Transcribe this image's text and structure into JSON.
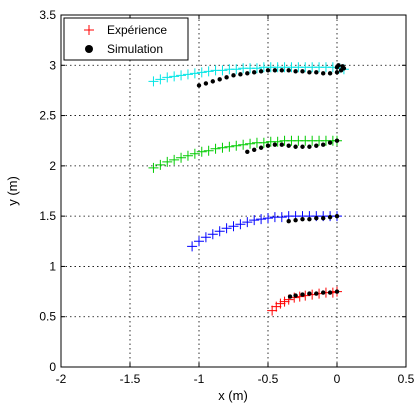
{
  "chart_data": {
    "type": "scatter",
    "title": "",
    "xlabel": "x (m)",
    "ylabel": "y (m)",
    "xlim": [
      -2,
      0.5
    ],
    "ylim": [
      0,
      3.5
    ],
    "x_ticks": [
      "-2",
      "-1.5",
      "-1",
      "-0.5",
      "0",
      "0.5"
    ],
    "y_ticks": [
      "0",
      "0.5",
      "1",
      "1.5",
      "2",
      "2.5",
      "3",
      "3.5"
    ],
    "grid": true,
    "grid_style": "dotted",
    "legend": {
      "placement": "top-left",
      "entries": [
        {
          "label": "Expérience",
          "marker": "plus",
          "color": "#ff0000"
        },
        {
          "label": "Simulation",
          "marker": "filled-circle",
          "color": "#000000"
        }
      ]
    },
    "series": [
      {
        "kind": "experience",
        "marker": "plus",
        "color": "#ff0000",
        "x": [
          -0.47,
          -0.44,
          -0.41,
          -0.38,
          -0.35,
          -0.31,
          -0.27,
          -0.23,
          -0.18,
          -0.13,
          -0.08,
          -0.03,
          0.0
        ],
        "y": [
          0.56,
          0.6,
          0.63,
          0.65,
          0.67,
          0.69,
          0.7,
          0.71,
          0.72,
          0.73,
          0.74,
          0.74,
          0.75
        ]
      },
      {
        "kind": "simulation",
        "marker": "filled-circle",
        "color": "#000000",
        "x": [
          -0.34,
          -0.3,
          -0.25,
          -0.2,
          -0.15,
          -0.1,
          -0.05,
          0.0
        ],
        "y": [
          0.7,
          0.71,
          0.72,
          0.73,
          0.73,
          0.74,
          0.74,
          0.75
        ]
      },
      {
        "kind": "experience",
        "marker": "plus",
        "color": "#0000ff",
        "x": [
          -1.05,
          -1.0,
          -0.95,
          -0.9,
          -0.85,
          -0.8,
          -0.75,
          -0.7,
          -0.65,
          -0.6,
          -0.55,
          -0.5,
          -0.45,
          -0.4,
          -0.35,
          -0.3,
          -0.25,
          -0.2,
          -0.15,
          -0.1,
          -0.05,
          0.0
        ],
        "y": [
          1.2,
          1.25,
          1.29,
          1.32,
          1.35,
          1.38,
          1.4,
          1.42,
          1.44,
          1.46,
          1.47,
          1.48,
          1.49,
          1.49,
          1.5,
          1.5,
          1.5,
          1.5,
          1.5,
          1.5,
          1.5,
          1.5
        ]
      },
      {
        "kind": "simulation",
        "marker": "filled-circle",
        "color": "#000000",
        "x": [
          -0.35,
          -0.3,
          -0.25,
          -0.2,
          -0.15,
          -0.1,
          -0.05,
          0.0
        ],
        "y": [
          1.45,
          1.46,
          1.47,
          1.47,
          1.48,
          1.48,
          1.49,
          1.5
        ]
      },
      {
        "kind": "experience",
        "marker": "plus",
        "color": "#00cc00",
        "x": [
          -1.33,
          -1.28,
          -1.23,
          -1.18,
          -1.13,
          -1.08,
          -1.03,
          -0.98,
          -0.93,
          -0.88,
          -0.83,
          -0.78,
          -0.73,
          -0.68,
          -0.63,
          -0.58,
          -0.53,
          -0.48,
          -0.43,
          -0.38,
          -0.33,
          -0.28,
          -0.23,
          -0.18,
          -0.13,
          -0.08,
          -0.03,
          0.0
        ],
        "y": [
          1.98,
          2.01,
          2.04,
          2.06,
          2.08,
          2.1,
          2.12,
          2.14,
          2.15,
          2.17,
          2.18,
          2.19,
          2.2,
          2.21,
          2.22,
          2.23,
          2.23,
          2.24,
          2.24,
          2.25,
          2.25,
          2.25,
          2.25,
          2.25,
          2.25,
          2.25,
          2.25,
          2.25
        ]
      },
      {
        "kind": "simulation",
        "marker": "filled-circle",
        "color": "#000000",
        "x": [
          -0.65,
          -0.6,
          -0.55,
          -0.5,
          -0.45,
          -0.4,
          -0.35,
          -0.3,
          -0.25,
          -0.2,
          -0.15,
          -0.1,
          -0.05,
          0.0
        ],
        "y": [
          2.14,
          2.16,
          2.18,
          2.2,
          2.21,
          2.21,
          2.2,
          2.19,
          2.19,
          2.19,
          2.2,
          2.21,
          2.23,
          2.25
        ]
      },
      {
        "kind": "experience",
        "marker": "plus",
        "color": "#00e5e5",
        "x": [
          -1.33,
          -1.28,
          -1.23,
          -1.18,
          -1.13,
          -1.08,
          -1.03,
          -0.98,
          -0.93,
          -0.88,
          -0.83,
          -0.78,
          -0.73,
          -0.68,
          -0.63,
          -0.58,
          -0.53,
          -0.48,
          -0.43,
          -0.38,
          -0.33,
          -0.28,
          -0.23,
          -0.18,
          -0.13,
          -0.08,
          -0.03,
          0.02,
          0.05
        ],
        "y": [
          2.84,
          2.86,
          2.88,
          2.89,
          2.9,
          2.91,
          2.92,
          2.93,
          2.94,
          2.95,
          2.95,
          2.96,
          2.96,
          2.97,
          2.97,
          2.97,
          2.98,
          2.98,
          2.98,
          2.98,
          2.98,
          2.98,
          2.98,
          2.98,
          2.98,
          2.98,
          2.98,
          2.97,
          2.96
        ]
      },
      {
        "kind": "simulation",
        "marker": "filled-circle",
        "color": "#000000",
        "x": [
          -1.0,
          -0.95,
          -0.9,
          -0.85,
          -0.8,
          -0.75,
          -0.7,
          -0.65,
          -0.6,
          -0.55,
          -0.5,
          -0.45,
          -0.4,
          -0.35,
          -0.3,
          -0.25,
          -0.2,
          -0.15,
          -0.1,
          -0.05,
          0.0,
          0.03,
          0.05,
          0.04,
          0.01,
          0.0
        ],
        "y": [
          2.8,
          2.82,
          2.84,
          2.86,
          2.88,
          2.9,
          2.91,
          2.92,
          2.93,
          2.94,
          2.95,
          2.95,
          2.95,
          2.95,
          2.94,
          2.94,
          2.93,
          2.93,
          2.92,
          2.92,
          2.93,
          2.95,
          2.97,
          2.99,
          3.0,
          2.98
        ]
      }
    ]
  }
}
